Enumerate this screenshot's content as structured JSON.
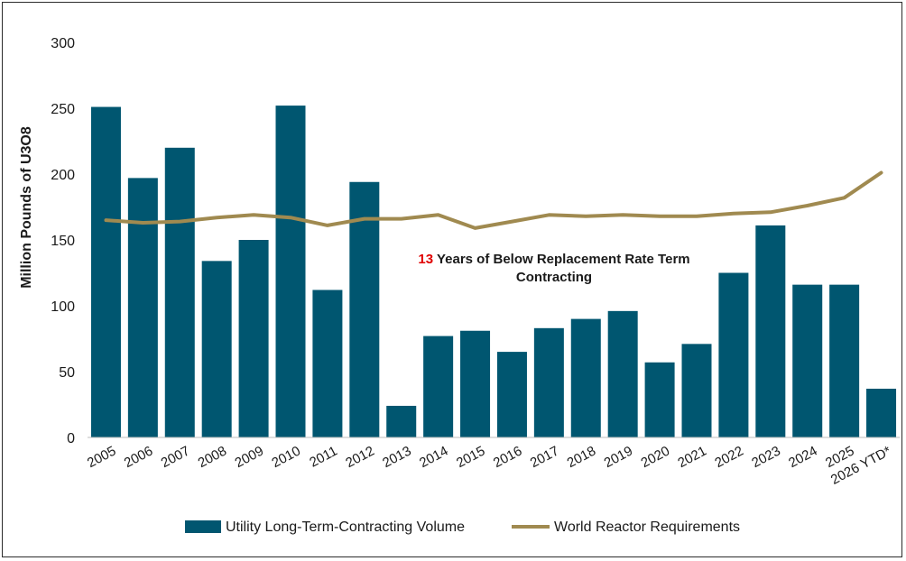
{
  "chart_data": {
    "type": "bar",
    "categories": [
      "2005",
      "2006",
      "2007",
      "2008",
      "2009",
      "2010",
      "2011",
      "2012",
      "2013",
      "2014",
      "2015",
      "2016",
      "2017",
      "2018",
      "2019",
      "2020",
      "2021",
      "2022",
      "2023",
      "2024",
      "2025",
      "2026 YTD*"
    ],
    "series": [
      {
        "name": "Utility Long-Term-Contracting Volume",
        "type": "bar",
        "color": "#005670",
        "values": [
          251,
          197,
          220,
          134,
          150,
          252,
          112,
          194,
          24,
          77,
          81,
          65,
          83,
          90,
          96,
          57,
          71,
          125,
          161,
          116,
          116,
          37
        ]
      },
      {
        "name": "World Reactor Requirements",
        "type": "line",
        "color": "#A08A50",
        "values": [
          165,
          163,
          164,
          167,
          169,
          167,
          161,
          166,
          166,
          169,
          159,
          164,
          169,
          168,
          169,
          168,
          168,
          170,
          171,
          176,
          182,
          201
        ]
      }
    ],
    "ylabel": "Million Pounds of U3O8",
    "ylim": [
      0,
      300
    ],
    "yticks": [
      0,
      50,
      100,
      150,
      200,
      250,
      300
    ],
    "grid": false,
    "legend_position": "bottom",
    "annotation": {
      "number": "13",
      "line1": " Years of Below Replacement Rate Term",
      "line2": "Contracting"
    }
  }
}
